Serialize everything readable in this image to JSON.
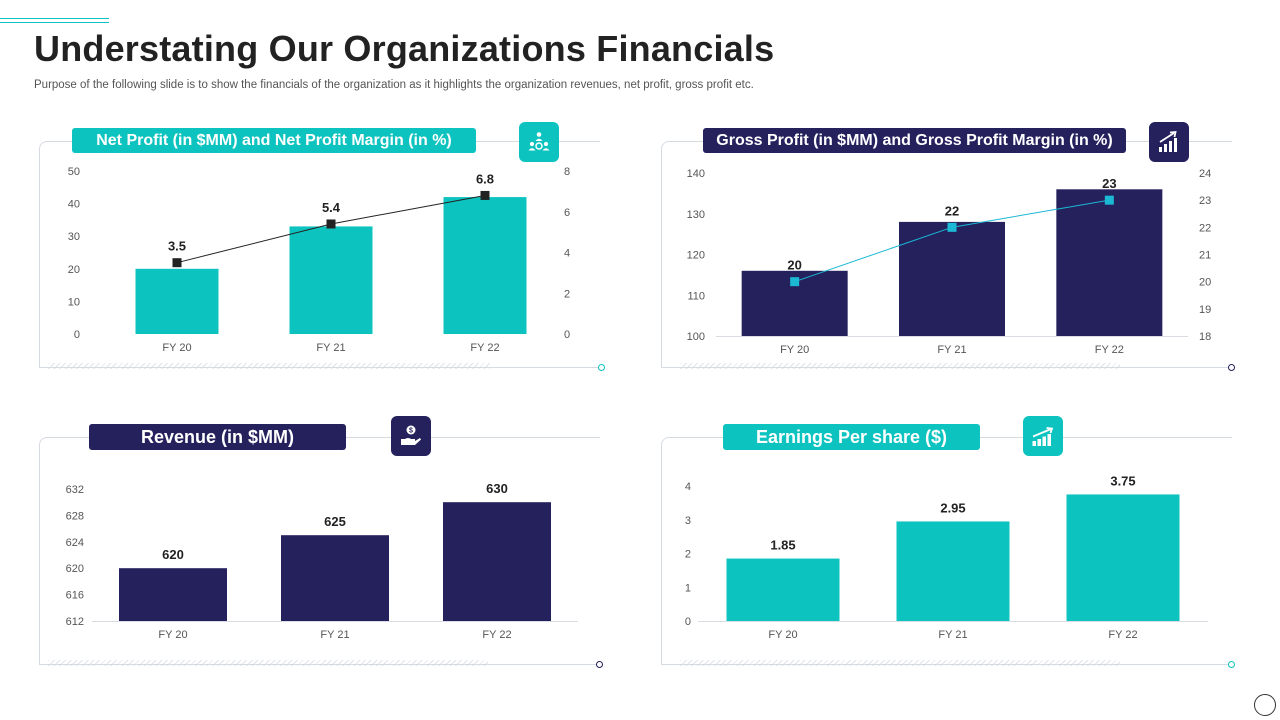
{
  "page": {
    "title": "Understating Our Organizations Financials",
    "subtitle": "Purpose of the following slide is to show the financials of the organization as it highlights the organization revenues, net profit, gross profit etc."
  },
  "colors": {
    "teal": "#0cc3bf",
    "navy": "#24215d",
    "line_dark": "#222222",
    "line_teal": "#1bb9d4"
  },
  "panels": {
    "net_profit": {
      "label": "Net Profit (in $MM) and Net Profit Margin (in %)",
      "icon": "team-money-icon"
    },
    "gross_profit": {
      "label": "Gross Profit (in $MM) and Gross Profit Margin (in %)",
      "icon": "growth-chart-icon"
    },
    "revenue": {
      "label": "Revenue (in $MM)",
      "icon": "hand-coin-icon"
    },
    "eps": {
      "label": "Earnings Per share ($)",
      "icon": "bar-growth-icon"
    }
  },
  "chart_data": [
    {
      "id": "net_profit",
      "type": "bar",
      "title": "Net Profit (in $MM) and Net Profit Margin (in %)",
      "categories": [
        "FY 20",
        "FY 21",
        "FY 22"
      ],
      "series": [
        {
          "name": "Net Profit",
          "type": "bar",
          "axis": "left",
          "values": [
            20,
            33,
            42
          ],
          "color": "teal"
        },
        {
          "name": "Net Profit Margin",
          "type": "line",
          "axis": "right",
          "values": [
            3.5,
            5.4,
            6.8
          ],
          "labels": [
            "3.5",
            "5.4",
            "6.8"
          ],
          "color": "line_dark"
        }
      ],
      "y_left": {
        "min": 0,
        "max": 50,
        "ticks": [
          "0",
          "10",
          "20",
          "30",
          "40",
          "50"
        ]
      },
      "y_right": {
        "min": 0,
        "max": 8,
        "ticks": [
          "0",
          "2",
          "4",
          "6",
          "8"
        ]
      }
    },
    {
      "id": "gross_profit",
      "type": "bar",
      "title": "Gross Profit (in $MM) and Gross Profit Margin (in %)",
      "categories": [
        "FY 20",
        "FY 21",
        "FY 22"
      ],
      "series": [
        {
          "name": "Gross Profit",
          "type": "bar",
          "axis": "left",
          "values": [
            116,
            128,
            136
          ],
          "color": "navy"
        },
        {
          "name": "Gross Profit Margin",
          "type": "line",
          "axis": "right",
          "values": [
            20,
            22,
            23
          ],
          "labels": [
            "20",
            "22",
            "23"
          ],
          "color": "line_teal"
        }
      ],
      "y_left": {
        "min": 100,
        "max": 140,
        "ticks": [
          "100",
          "110",
          "120",
          "130",
          "140"
        ]
      },
      "y_right": {
        "min": 18,
        "max": 24,
        "ticks": [
          "18",
          "19",
          "20",
          "21",
          "22",
          "23",
          "24"
        ]
      }
    },
    {
      "id": "revenue",
      "type": "bar",
      "title": "Revenue (in $MM)",
      "categories": [
        "FY 20",
        "FY 21",
        "FY 22"
      ],
      "series": [
        {
          "name": "Revenue",
          "type": "bar",
          "axis": "left",
          "values": [
            620,
            625,
            630
          ],
          "labels": [
            "620",
            "625",
            "630"
          ],
          "color": "navy"
        }
      ],
      "y_left": {
        "min": 612,
        "max": 632,
        "ticks": [
          "612",
          "616",
          "620",
          "624",
          "628",
          "632"
        ]
      }
    },
    {
      "id": "eps",
      "type": "bar",
      "title": "Earnings Per share ($)",
      "categories": [
        "FY 20",
        "FY 21",
        "FY 22"
      ],
      "series": [
        {
          "name": "EPS",
          "type": "bar",
          "axis": "left",
          "values": [
            1.85,
            2.95,
            3.75
          ],
          "labels": [
            "1.85",
            "2.95",
            "3.75"
          ],
          "color": "teal"
        }
      ],
      "y_left": {
        "min": 0,
        "max": 4,
        "ticks": [
          "0",
          "1",
          "2",
          "3",
          "4"
        ]
      }
    }
  ]
}
